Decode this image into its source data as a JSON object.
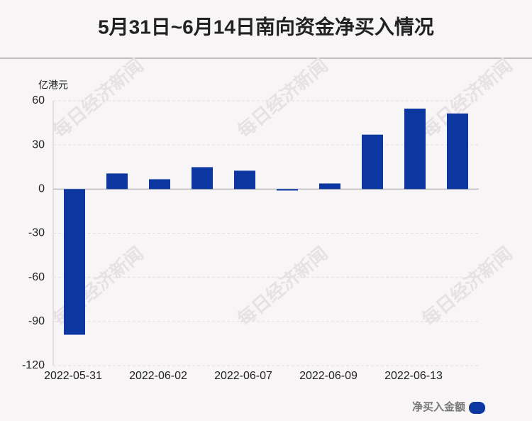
{
  "chart_data": {
    "type": "bar",
    "title": "5月31日~6月14日南向资金净买入情况",
    "y_label": "亿港元",
    "watermark": "每日经济新闻",
    "categories": [
      "2022-05-31",
      null,
      "2022-06-02",
      null,
      "2022-06-07",
      null,
      "2022-06-09",
      null,
      "2022-06-13",
      null
    ],
    "series": [
      {
        "name": "净买入金额",
        "color": "#0c37a0",
        "values": [
          -99,
          10.6,
          6.7,
          14.9,
          12.5,
          -1,
          3.8,
          37,
          54.7,
          51.4
        ]
      }
    ],
    "ylim": [
      -120,
      60
    ],
    "yticks": [
      -120,
      -90,
      -60,
      -30,
      0,
      30,
      60
    ],
    "grid": true
  }
}
